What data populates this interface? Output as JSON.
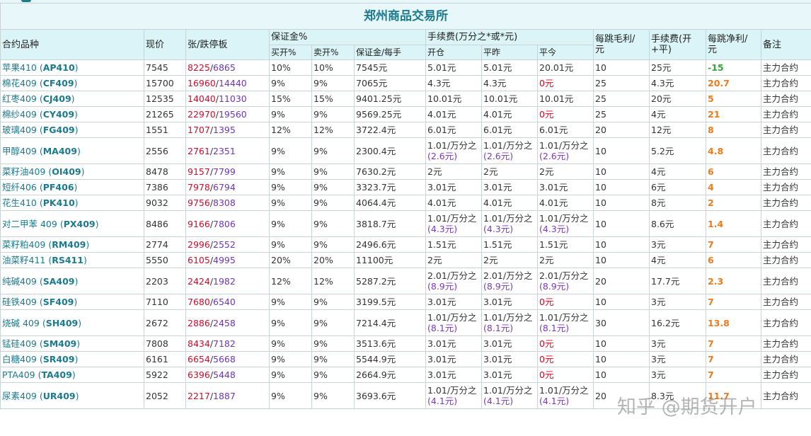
{
  "title": "郑州商品交易所",
  "headers": {
    "contract": "合约品种",
    "price": "现价",
    "limit": "张/跌停板",
    "margin": "保证金%",
    "margin_buy": "买开%",
    "margin_sell": "卖开%",
    "margin_per_lot": "保证金/每手",
    "fee": "手续费(万分之*或*元)",
    "fee_open": "开仓",
    "fee_close": "平昨",
    "fee_close_today": "平今",
    "tick_gross_1": "每跳毛利/",
    "tick_gross_2": "元",
    "fee_total_1": "手续费(开",
    "fee_total_2": "+平)",
    "tick_net_1": "每跳净利/",
    "tick_net_2": "元",
    "note": "备注"
  },
  "rows": [
    {
      "name": "苹果410",
      "code": "AP410",
      "price": "7545",
      "up": "8225",
      "down": "6865",
      "buy": "10%",
      "sell": "10%",
      "margin": "7545元",
      "open": "5.01元",
      "close": "5.01元",
      "today": "20.01元",
      "today_red": false,
      "gross": "10",
      "fee": "25元",
      "net": "-15",
      "net_neg": true,
      "note": "主力合约"
    },
    {
      "name": "棉花409",
      "code": "CF409",
      "price": "15700",
      "up": "16960",
      "down": "14440",
      "buy": "9%",
      "sell": "9%",
      "margin": "7065元",
      "open": "4.3元",
      "close": "4.3元",
      "today": "0元",
      "today_red": true,
      "gross": "25",
      "fee": "4.3元",
      "net": "20.7",
      "net_neg": false,
      "note": "主力合约"
    },
    {
      "name": "红枣409",
      "code": "CJ409",
      "price": "12535",
      "up": "14040",
      "down": "11030",
      "buy": "15%",
      "sell": "15%",
      "margin": "9401.25元",
      "open": "10.01元",
      "close": "10.01元",
      "today": "10.01元",
      "today_red": false,
      "gross": "25",
      "fee": "20元",
      "net": "5",
      "net_neg": false,
      "note": "主力合约"
    },
    {
      "name": "棉纱409",
      "code": "CY409",
      "price": "21265",
      "up": "22970",
      "down": "19560",
      "buy": "9%",
      "sell": "9%",
      "margin": "9569.25元",
      "open": "4.01元",
      "close": "4.01元",
      "today": "0元",
      "today_red": true,
      "gross": "25",
      "fee": "4元",
      "net": "21",
      "net_neg": false,
      "note": "主力合约"
    },
    {
      "name": "玻璃409",
      "code": "FG409",
      "price": "1551",
      "up": "1707",
      "down": "1395",
      "buy": "12%",
      "sell": "12%",
      "margin": "3722.4元",
      "open": "6.01元",
      "close": "6.01元",
      "today": "6.01元",
      "today_red": false,
      "gross": "20",
      "fee": "12元",
      "net": "8",
      "net_neg": false,
      "note": "主力合约"
    },
    {
      "name": "甲醇409",
      "code": "MA409",
      "price": "2556",
      "up": "2761",
      "down": "2351",
      "buy": "9%",
      "sell": "9%",
      "margin": "2300.4元",
      "open": "1.01/万分之",
      "open2": "(2.6元)",
      "close": "1.01/万分之",
      "close2": "(2.6元)",
      "today": "1.01/万分之",
      "today2": "(2.6元)",
      "today_red": false,
      "gross": "10",
      "fee": "5.2元",
      "net": "4.8",
      "net_neg": false,
      "note": "主力合约"
    },
    {
      "name": "菜籽油409",
      "code": "OI409",
      "price": "8478",
      "up": "9157",
      "down": "7799",
      "buy": "9%",
      "sell": "9%",
      "margin": "7630.2元",
      "open": "2元",
      "close": "2元",
      "today": "2元",
      "today_red": false,
      "gross": "10",
      "fee": "4元",
      "net": "6",
      "net_neg": false,
      "note": "主力合约"
    },
    {
      "name": "短纤406",
      "code": "PF406",
      "price": "7386",
      "up": "7978",
      "down": "6794",
      "buy": "9%",
      "sell": "9%",
      "margin": "3323.7元",
      "open": "3.01元",
      "close": "3.01元",
      "today": "3.01元",
      "today_red": false,
      "gross": "10",
      "fee": "6元",
      "net": "4",
      "net_neg": false,
      "note": "主力合约"
    },
    {
      "name": "花生410",
      "code": "PK410",
      "price": "9032",
      "up": "9756",
      "down": "8308",
      "buy": "9%",
      "sell": "9%",
      "margin": "4064.4元",
      "open": "4.01元",
      "close": "4.01元",
      "today": "4.01元",
      "today_red": false,
      "gross": "10",
      "fee": "8元",
      "net": "2",
      "net_neg": false,
      "note": "主力合约"
    },
    {
      "name": "对二甲苯 409",
      "code": "PX409",
      "price": "8486",
      "up": "9166",
      "down": "7806",
      "buy": "9%",
      "sell": "9%",
      "margin": "3818.7元",
      "open": "1.01/万分之",
      "open2": "(4.3元)",
      "close": "1.01/万分之",
      "close2": "(4.3元)",
      "today": "1.01/万分之",
      "today2": "(4.3元)",
      "today_red": false,
      "gross": "10",
      "fee": "8.6元",
      "net": "1.4",
      "net_neg": false,
      "note": "主力合约"
    },
    {
      "name": "菜籽粕409",
      "code": "RM409",
      "price": "2774",
      "up": "2996",
      "down": "2552",
      "buy": "9%",
      "sell": "9%",
      "margin": "2496.6元",
      "open": "1.51元",
      "close": "1.51元",
      "today": "1.51元",
      "today_red": false,
      "gross": "10",
      "fee": "3元",
      "net": "7",
      "net_neg": false,
      "note": "主力合约"
    },
    {
      "name": "油菜籽411",
      "code": "RS411",
      "price": "5550",
      "up": "6105",
      "down": "4995",
      "buy": "20%",
      "sell": "20%",
      "margin": "11100元",
      "open": "2元",
      "close": "2元",
      "today": "2元",
      "today_red": false,
      "gross": "10",
      "fee": "4元",
      "net": "6",
      "net_neg": false,
      "note": "主力合约"
    },
    {
      "name": "纯碱409",
      "code": "SA409",
      "price": "2203",
      "up": "2424",
      "down": "1982",
      "buy": "12%",
      "sell": "12%",
      "margin": "5287.2元",
      "open": "2.01/万分之",
      "open2": "(8.9元)",
      "close": "2.01/万分之",
      "close2": "(8.9元)",
      "today": "2.01/万分之",
      "today2": "(8.9元)",
      "today_red": false,
      "gross": "20",
      "fee": "17.7元",
      "net": "2.3",
      "net_neg": false,
      "note": "主力合约"
    },
    {
      "name": "硅铁409",
      "code": "SF409",
      "price": "7110",
      "up": "7680",
      "down": "6540",
      "buy": "9%",
      "sell": "9%",
      "margin": "3199.5元",
      "open": "3.01元",
      "close": "3.01元",
      "today": "0元",
      "today_red": true,
      "gross": "10",
      "fee": "3元",
      "net": "7",
      "net_neg": false,
      "note": "主力合约"
    },
    {
      "name": "烧碱 409",
      "code": "SH409",
      "price": "2672",
      "up": "2886",
      "down": "2458",
      "buy": "9%",
      "sell": "9%",
      "margin": "7214.4元",
      "open": "1.01/万分之",
      "open2": "(8.1元)",
      "close": "1.01/万分之",
      "close2": "(8.1元)",
      "today": "1.01/万分之",
      "today2": "(8.1元)",
      "today_red": false,
      "gross": "30",
      "fee": "16.2元",
      "net": "13.8",
      "net_neg": false,
      "note": "主力合约"
    },
    {
      "name": "锰硅409",
      "code": "SM409",
      "price": "7808",
      "up": "8434",
      "down": "7182",
      "buy": "9%",
      "sell": "9%",
      "margin": "3513.6元",
      "open": "3.01元",
      "close": "3.01元",
      "today": "0元",
      "today_red": true,
      "gross": "10",
      "fee": "3元",
      "net": "7",
      "net_neg": false,
      "note": "主力合约"
    },
    {
      "name": "白糖409",
      "code": "SR409",
      "price": "6161",
      "up": "6654",
      "down": "5668",
      "buy": "9%",
      "sell": "9%",
      "margin": "5544.9元",
      "open": "3.01元",
      "close": "3.01元",
      "today": "0元",
      "today_red": true,
      "gross": "10",
      "fee": "3元",
      "net": "7",
      "net_neg": false,
      "note": "主力合约"
    },
    {
      "name": "PTA409",
      "code": "TA409",
      "price": "5922",
      "up": "6396",
      "down": "5448",
      "buy": "9%",
      "sell": "9%",
      "margin": "2664.9元",
      "open": "3.01元",
      "close": "3.01元",
      "today": "0元",
      "today_red": true,
      "gross": "10",
      "fee": "3元",
      "net": "7",
      "net_neg": false,
      "note": "主力合约"
    },
    {
      "name": "尿素409",
      "code": "UR409",
      "price": "2052",
      "up": "2217",
      "down": "1887",
      "buy": "9%",
      "sell": "9%",
      "margin": "3693.6元",
      "open": "1.01/万分之",
      "open2": "(4.1元)",
      "close": "1.01/万分之",
      "close2": "(4.1元)",
      "today": "1.01/万分之",
      "today2": "(4.1元)",
      "today_red": false,
      "gross": "20",
      "fee": "8.3元",
      "net": "11.7",
      "net_neg": false,
      "note": "主力合约"
    }
  ],
  "watermark_brand": "知乎 @期货开户"
}
